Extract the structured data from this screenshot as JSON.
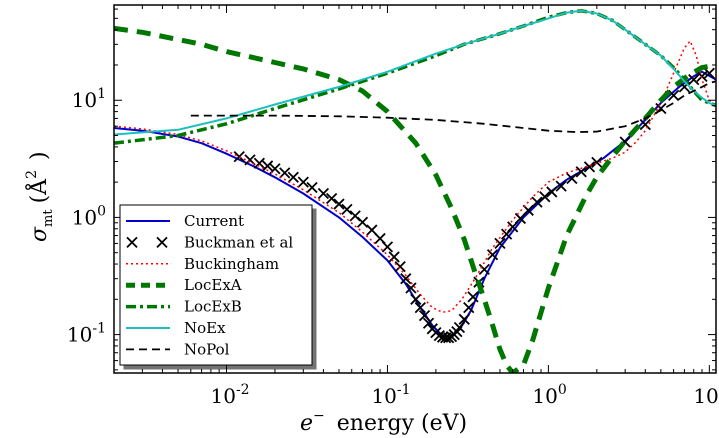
{
  "chart_data": {
    "type": "line",
    "title": "",
    "xlabel": "e⁻ energy (eV)",
    "ylabel": "σ_mt (Å²)",
    "xlabel_parts": {
      "base": "e",
      "sup": "−",
      "rest": "energy (eV)"
    },
    "ylabel_parts": {
      "sym": "σ",
      "sub": "mt",
      "paren_open": "(",
      "unit": "Å",
      "sup": "2",
      "paren_close": ")"
    },
    "x_scale": "log",
    "y_scale": "log",
    "xlim": [
      0.002,
      11
    ],
    "ylim": [
      0.047,
      65
    ],
    "grid": false,
    "legend_position": "bottom-left",
    "x_ticks": [
      {
        "value": 0.01,
        "base": "10",
        "exp": "-2"
      },
      {
        "value": 0.1,
        "base": "10",
        "exp": "-1"
      },
      {
        "value": 1,
        "base": "10",
        "exp": "0"
      },
      {
        "value": 10,
        "base": "10",
        "exp": "1"
      }
    ],
    "y_ticks": [
      {
        "value": 0.1,
        "base": "10",
        "exp": "-1"
      },
      {
        "value": 1,
        "base": "10",
        "exp": "0"
      },
      {
        "value": 10,
        "base": "10",
        "exp": "1"
      }
    ],
    "series": [
      {
        "name": "Current",
        "color": "#0000cc",
        "style": "solid",
        "width": 2,
        "points": [
          [
            0.002,
            5.8
          ],
          [
            0.003,
            5.5
          ],
          [
            0.005,
            4.9
          ],
          [
            0.007,
            4.3
          ],
          [
            0.01,
            3.5
          ],
          [
            0.015,
            2.7
          ],
          [
            0.02,
            2.2
          ],
          [
            0.03,
            1.6
          ],
          [
            0.05,
            1.0
          ],
          [
            0.07,
            0.68
          ],
          [
            0.1,
            0.43
          ],
          [
            0.13,
            0.27
          ],
          [
            0.16,
            0.17
          ],
          [
            0.19,
            0.12
          ],
          [
            0.22,
            0.097
          ],
          [
            0.25,
            0.095
          ],
          [
            0.28,
            0.11
          ],
          [
            0.33,
            0.16
          ],
          [
            0.4,
            0.3
          ],
          [
            0.5,
            0.55
          ],
          [
            0.7,
            1.0
          ],
          [
            1.0,
            1.6
          ],
          [
            1.3,
            2.1
          ],
          [
            1.7,
            2.6
          ],
          [
            2.2,
            3.2
          ],
          [
            3.0,
            4.5
          ],
          [
            4.0,
            6.8
          ],
          [
            5.0,
            9.5
          ],
          [
            6.5,
            13
          ],
          [
            8.0,
            16
          ],
          [
            9.0,
            17.5
          ],
          [
            11,
            15
          ]
        ]
      },
      {
        "name": "Buckman et al",
        "color": "#000000",
        "style": "marker-x",
        "width": 1.8,
        "points": [
          [
            0.012,
            3.3
          ],
          [
            0.014,
            3.1
          ],
          [
            0.016,
            2.9
          ],
          [
            0.018,
            2.75
          ],
          [
            0.02,
            2.6
          ],
          [
            0.023,
            2.4
          ],
          [
            0.026,
            2.2
          ],
          [
            0.03,
            2.0
          ],
          [
            0.034,
            1.8
          ],
          [
            0.04,
            1.6
          ],
          [
            0.045,
            1.45
          ],
          [
            0.05,
            1.3
          ],
          [
            0.056,
            1.17
          ],
          [
            0.063,
            1.03
          ],
          [
            0.07,
            0.91
          ],
          [
            0.08,
            0.78
          ],
          [
            0.09,
            0.66
          ],
          [
            0.1,
            0.56
          ],
          [
            0.11,
            0.46
          ],
          [
            0.12,
            0.38
          ],
          [
            0.13,
            0.3
          ],
          [
            0.14,
            0.25
          ],
          [
            0.15,
            0.2
          ],
          [
            0.16,
            0.17
          ],
          [
            0.17,
            0.145
          ],
          [
            0.18,
            0.125
          ],
          [
            0.19,
            0.112
          ],
          [
            0.2,
            0.104
          ],
          [
            0.21,
            0.098
          ],
          [
            0.22,
            0.095
          ],
          [
            0.23,
            0.094
          ],
          [
            0.24,
            0.094
          ],
          [
            0.25,
            0.096
          ],
          [
            0.26,
            0.1
          ],
          [
            0.27,
            0.106
          ],
          [
            0.28,
            0.115
          ],
          [
            0.3,
            0.135
          ],
          [
            0.32,
            0.17
          ],
          [
            0.34,
            0.21
          ],
          [
            0.37,
            0.28
          ],
          [
            0.4,
            0.36
          ],
          [
            0.45,
            0.48
          ],
          [
            0.5,
            0.6
          ],
          [
            0.55,
            0.72
          ],
          [
            0.6,
            0.83
          ],
          [
            0.67,
            0.98
          ],
          [
            0.75,
            1.15
          ],
          [
            0.85,
            1.35
          ],
          [
            0.95,
            1.5
          ],
          [
            1.05,
            1.65
          ],
          [
            1.2,
            1.85
          ],
          [
            1.4,
            2.15
          ],
          [
            1.6,
            2.45
          ],
          [
            1.8,
            2.7
          ],
          [
            2.0,
            2.95
          ],
          [
            3.0,
            4.4
          ],
          [
            4.0,
            6.2
          ],
          [
            5.0,
            8.5
          ],
          [
            6.0,
            11
          ],
          [
            7.0,
            13
          ],
          [
            8.0,
            15
          ],
          [
            9.0,
            16
          ],
          [
            10.0,
            17
          ]
        ]
      },
      {
        "name": "Buckingham",
        "color": "#ff0000",
        "style": "dotted",
        "width": 1.5,
        "points": [
          [
            0.002,
            6.0
          ],
          [
            0.003,
            5.7
          ],
          [
            0.005,
            5.1
          ],
          [
            0.007,
            4.5
          ],
          [
            0.01,
            3.7
          ],
          [
            0.015,
            2.85
          ],
          [
            0.02,
            2.35
          ],
          [
            0.03,
            1.72
          ],
          [
            0.05,
            1.1
          ],
          [
            0.07,
            0.75
          ],
          [
            0.1,
            0.48
          ],
          [
            0.13,
            0.32
          ],
          [
            0.16,
            0.22
          ],
          [
            0.19,
            0.17
          ],
          [
            0.22,
            0.155
          ],
          [
            0.25,
            0.16
          ],
          [
            0.29,
            0.2
          ],
          [
            0.35,
            0.3
          ],
          [
            0.45,
            0.55
          ],
          [
            0.6,
            0.95
          ],
          [
            0.8,
            1.5
          ],
          [
            1.0,
            2.0
          ],
          [
            1.3,
            2.4
          ],
          [
            1.7,
            2.7
          ],
          [
            2.0,
            2.9
          ],
          [
            2.5,
            3.2
          ],
          [
            3.0,
            3.6
          ],
          [
            3.5,
            4.4
          ],
          [
            4.0,
            5.5
          ],
          [
            5.0,
            9.5
          ],
          [
            6.0,
            17
          ],
          [
            7.0,
            28
          ],
          [
            7.6,
            32
          ],
          [
            8.3,
            24
          ],
          [
            9.0,
            15
          ],
          [
            10.0,
            10
          ],
          [
            11,
            9
          ]
        ]
      },
      {
        "name": "LocExA",
        "color": "#007700",
        "style": "dashed-thick",
        "width": 5,
        "points": [
          [
            0.002,
            41
          ],
          [
            0.003,
            38
          ],
          [
            0.005,
            33
          ],
          [
            0.007,
            30
          ],
          [
            0.01,
            26
          ],
          [
            0.015,
            23
          ],
          [
            0.02,
            21
          ],
          [
            0.03,
            18.5
          ],
          [
            0.05,
            15
          ],
          [
            0.07,
            12
          ],
          [
            0.1,
            8
          ],
          [
            0.15,
            4.3
          ],
          [
            0.2,
            2.3
          ],
          [
            0.25,
            1.2
          ],
          [
            0.3,
            0.65
          ],
          [
            0.35,
            0.34
          ],
          [
            0.4,
            0.2
          ],
          [
            0.45,
            0.12
          ],
          [
            0.5,
            0.075
          ],
          [
            0.55,
            0.055
          ],
          [
            0.6,
            0.047
          ],
          [
            0.7,
            0.055
          ],
          [
            0.8,
            0.09
          ],
          [
            1.0,
            0.25
          ],
          [
            1.3,
            0.7
          ],
          [
            1.7,
            1.5
          ],
          [
            2.0,
            2.2
          ],
          [
            2.5,
            3.3
          ],
          [
            3.0,
            4.5
          ],
          [
            4.0,
            7
          ],
          [
            5.0,
            10
          ],
          [
            6.0,
            13
          ],
          [
            7.5,
            16.5
          ],
          [
            9.0,
            19
          ],
          [
            11,
            20
          ]
        ]
      },
      {
        "name": "LocExB",
        "color": "#007700",
        "style": "dashdot-thick",
        "width": 3.5,
        "points": [
          [
            0.002,
            4.3
          ],
          [
            0.005,
            5.0
          ],
          [
            0.01,
            6.3
          ],
          [
            0.02,
            8.5
          ],
          [
            0.05,
            12.5
          ],
          [
            0.1,
            17
          ],
          [
            0.2,
            24
          ],
          [
            0.3,
            30
          ],
          [
            0.5,
            37
          ],
          [
            0.7,
            43
          ],
          [
            1.0,
            51
          ],
          [
            1.3,
            56
          ],
          [
            1.6,
            58
          ],
          [
            2.0,
            55
          ],
          [
            2.5,
            48
          ],
          [
            3.0,
            40
          ],
          [
            4.0,
            30
          ],
          [
            5.0,
            24
          ],
          [
            6.0,
            19
          ],
          [
            7.0,
            15
          ],
          [
            8.0,
            12
          ],
          [
            9.0,
            10
          ],
          [
            10.0,
            9.5
          ],
          [
            11,
            9
          ]
        ]
      },
      {
        "name": "NoEx",
        "color": "#1fbfbf",
        "style": "solid",
        "width": 2,
        "points": [
          [
            0.002,
            5.1
          ],
          [
            0.005,
            5.6
          ],
          [
            0.01,
            7.0
          ],
          [
            0.02,
            9.2
          ],
          [
            0.05,
            13
          ],
          [
            0.1,
            17.5
          ],
          [
            0.2,
            25
          ],
          [
            0.3,
            30
          ],
          [
            0.5,
            37
          ],
          [
            0.7,
            43
          ],
          [
            1.0,
            50
          ],
          [
            1.3,
            56
          ],
          [
            1.6,
            58
          ],
          [
            2.0,
            55
          ],
          [
            2.5,
            48
          ],
          [
            3.0,
            40
          ],
          [
            4.0,
            30
          ],
          [
            5.0,
            24
          ],
          [
            6.0,
            18.5
          ],
          [
            7.0,
            14.5
          ],
          [
            8.0,
            12
          ],
          [
            9.0,
            10.5
          ],
          [
            10.0,
            9.5
          ],
          [
            11,
            9
          ]
        ]
      },
      {
        "name": "NoPol",
        "color": "#000000",
        "style": "dashed",
        "width": 1.8,
        "points": [
          [
            0.006,
            7.4
          ],
          [
            0.01,
            7.4
          ],
          [
            0.02,
            7.4
          ],
          [
            0.05,
            7.3
          ],
          [
            0.1,
            7.1
          ],
          [
            0.2,
            6.8
          ],
          [
            0.4,
            6.3
          ],
          [
            0.7,
            5.8
          ],
          [
            1.0,
            5.5
          ],
          [
            1.5,
            5.35
          ],
          [
            2.0,
            5.4
          ],
          [
            3.0,
            6.0
          ],
          [
            4.0,
            7.0
          ],
          [
            5.0,
            8.2
          ],
          [
            6.0,
            9.5
          ],
          [
            7.0,
            11
          ],
          [
            8.0,
            12
          ],
          [
            9.0,
            13
          ],
          [
            10.0,
            14
          ],
          [
            11,
            14.5
          ]
        ]
      }
    ]
  }
}
